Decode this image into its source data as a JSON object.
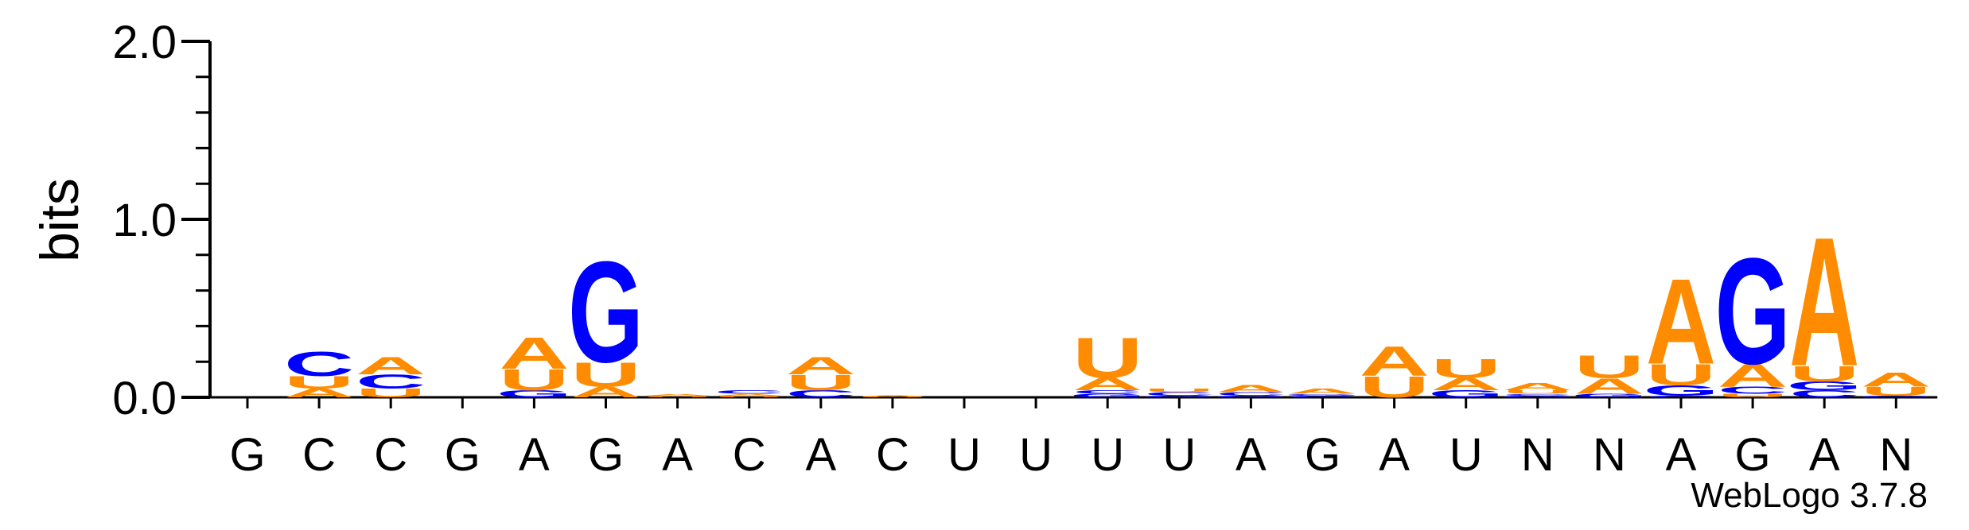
{
  "chart_data": {
    "type": "sequence-logo",
    "ylabel": "bits",
    "ylim": [
      0,
      2.0
    ],
    "yticks": [
      "0.0",
      "1.0",
      "2.0"
    ],
    "colors": {
      "A": "#ff8c00",
      "U": "#ff8c00",
      "G": "#0000ff",
      "C": "#0000ff"
    },
    "positions": [
      {
        "label": "G",
        "stack": []
      },
      {
        "label": "C",
        "stack": [
          [
            "A",
            0.05
          ],
          [
            "U",
            0.07
          ],
          [
            "C",
            0.14
          ]
        ]
      },
      {
        "label": "C",
        "stack": [
          [
            "U",
            0.05
          ],
          [
            "C",
            0.08
          ],
          [
            "A",
            0.1
          ]
        ]
      },
      {
        "label": "G",
        "stack": []
      },
      {
        "label": "A",
        "stack": [
          [
            "G",
            0.04
          ],
          [
            "U",
            0.12
          ],
          [
            "A",
            0.18
          ]
        ]
      },
      {
        "label": "G",
        "stack": [
          [
            "A",
            0.06
          ],
          [
            "U",
            0.14
          ],
          [
            "G",
            0.58
          ]
        ]
      },
      {
        "label": "A",
        "stack": [
          [
            "U",
            0.01
          ],
          [
            "A",
            0.01
          ]
        ]
      },
      {
        "label": "C",
        "stack": [
          [
            "U",
            0.01
          ],
          [
            "A",
            0.01
          ],
          [
            "C",
            0.02
          ]
        ]
      },
      {
        "label": "A",
        "stack": [
          [
            "C",
            0.04
          ],
          [
            "U",
            0.09
          ],
          [
            "A",
            0.1
          ]
        ]
      },
      {
        "label": "C",
        "stack": [
          [
            "U",
            0.005
          ],
          [
            "A",
            0.005
          ]
        ]
      },
      {
        "label": "U",
        "stack": []
      },
      {
        "label": "U",
        "stack": []
      },
      {
        "label": "U",
        "stack": [
          [
            "G",
            0.02
          ],
          [
            "C",
            0.02
          ],
          [
            "A",
            0.07
          ],
          [
            "U",
            0.23
          ]
        ]
      },
      {
        "label": "U",
        "stack": [
          [
            "G",
            0.01
          ],
          [
            "C",
            0.02
          ],
          [
            "U",
            0.02
          ]
        ]
      },
      {
        "label": "A",
        "stack": [
          [
            "G",
            0.01
          ],
          [
            "C",
            0.02
          ],
          [
            "A",
            0.04
          ]
        ]
      },
      {
        "label": "G",
        "stack": [
          [
            "C",
            0.01
          ],
          [
            "G",
            0.01
          ],
          [
            "A",
            0.03
          ]
        ]
      },
      {
        "label": "A",
        "stack": [
          [
            "U",
            0.12
          ],
          [
            "A",
            0.17
          ]
        ]
      },
      {
        "label": "U",
        "stack": [
          [
            "G",
            0.04
          ],
          [
            "A",
            0.07
          ],
          [
            "U",
            0.11
          ]
        ]
      },
      {
        "label": "N",
        "stack": [
          [
            "G",
            0.01
          ],
          [
            "C",
            0.01
          ],
          [
            "U",
            0.02
          ],
          [
            "A",
            0.04
          ]
        ]
      },
      {
        "label": "N",
        "stack": [
          [
            "G",
            0.02
          ],
          [
            "A",
            0.09
          ],
          [
            "U",
            0.13
          ]
        ]
      },
      {
        "label": "A",
        "stack": [
          [
            "C",
            0.01
          ],
          [
            "G",
            0.06
          ],
          [
            "U",
            0.12
          ],
          [
            "A",
            0.49
          ]
        ]
      },
      {
        "label": "G",
        "stack": [
          [
            "U",
            0.02
          ],
          [
            "C",
            0.04
          ],
          [
            "A",
            0.13
          ],
          [
            "G",
            0.61
          ]
        ]
      },
      {
        "label": "A",
        "stack": [
          [
            "C",
            0.04
          ],
          [
            "G",
            0.05
          ],
          [
            "U",
            0.09
          ],
          [
            "A",
            0.74
          ]
        ]
      },
      {
        "label": "N",
        "stack": [
          [
            "G",
            0.01
          ],
          [
            "U",
            0.05
          ],
          [
            "A",
            0.08
          ]
        ]
      }
    ]
  },
  "credit": "WebLogo 3.7.8"
}
